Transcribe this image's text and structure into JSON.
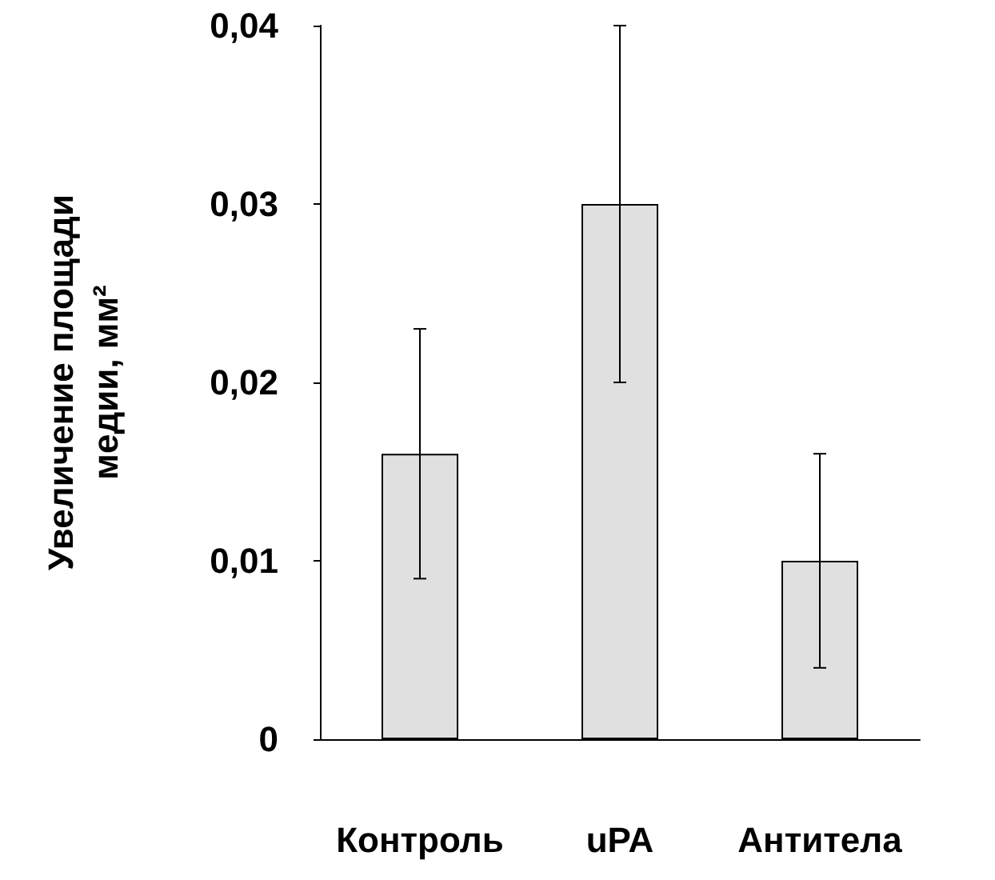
{
  "chart_data": {
    "type": "bar",
    "ylabel": "Увеличение площади\nмедии, мм²",
    "categories": [
      "Контроль",
      "uPA",
      "Антитела"
    ],
    "values": [
      0.016,
      0.03,
      0.01
    ],
    "errors": [
      0.007,
      0.01,
      0.006
    ],
    "color": "#e0e0e0",
    "ylim": [
      0,
      0.04
    ],
    "yticks": [
      0,
      {
        "value": 0.01,
        "label": "0,01"
      },
      {
        "value": 0.02,
        "label": "0,02"
      },
      {
        "value": 0.03,
        "label": "0,03"
      },
      {
        "value": 0.04,
        "label": "0,04"
      }
    ],
    "grid": false
  }
}
